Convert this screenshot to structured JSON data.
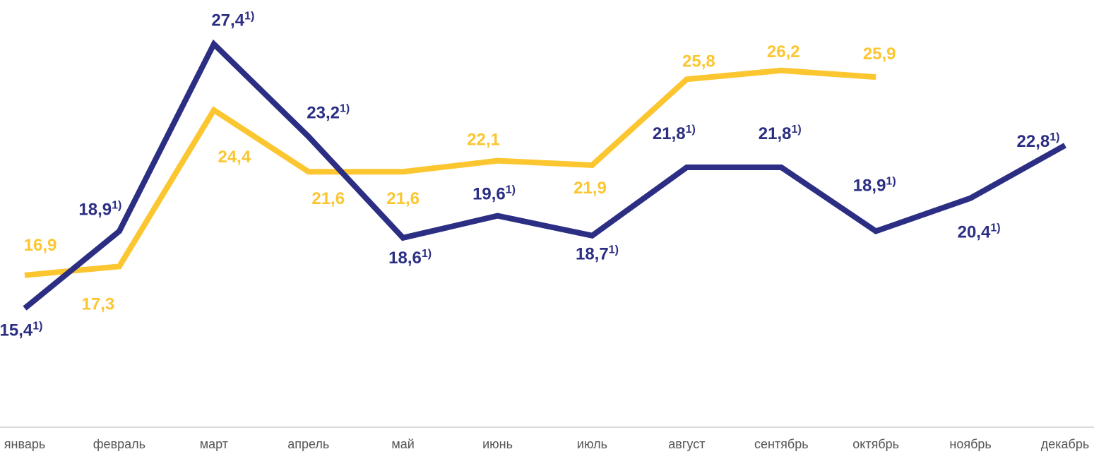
{
  "chart_data": {
    "type": "line",
    "categories": [
      "январь",
      "февраль",
      "март",
      "апрель",
      "май",
      "июнь",
      "июль",
      "август",
      "сентябрь",
      "октябрь",
      "ноябрь",
      "декабрь"
    ],
    "ylim": [
      10,
      29.4
    ],
    "series": [
      {
        "color": "#2b2e83",
        "footnote": "1)",
        "values": [
          15.4,
          18.9,
          27.4,
          23.2,
          18.6,
          19.6,
          18.7,
          21.8,
          21.8,
          18.9,
          20.4,
          22.8
        ],
        "value_labels": [
          "15,4",
          "18,9",
          "27,4",
          "23,2",
          "18,6",
          "19,6",
          "18,7",
          "21,8",
          "21,8",
          "18,9",
          "20,4",
          "22,8"
        ]
      },
      {
        "color": "#fcc630",
        "values": [
          16.9,
          17.3,
          24.4,
          21.6,
          21.6,
          22.1,
          21.9,
          25.8,
          26.2,
          25.9,
          null,
          null
        ],
        "value_labels": [
          "16,9",
          "17,3",
          "24,4",
          "21,6",
          "21,6",
          "22,1",
          "21,9",
          "25,8",
          "26,2",
          "25,9",
          null,
          null
        ]
      }
    ]
  }
}
